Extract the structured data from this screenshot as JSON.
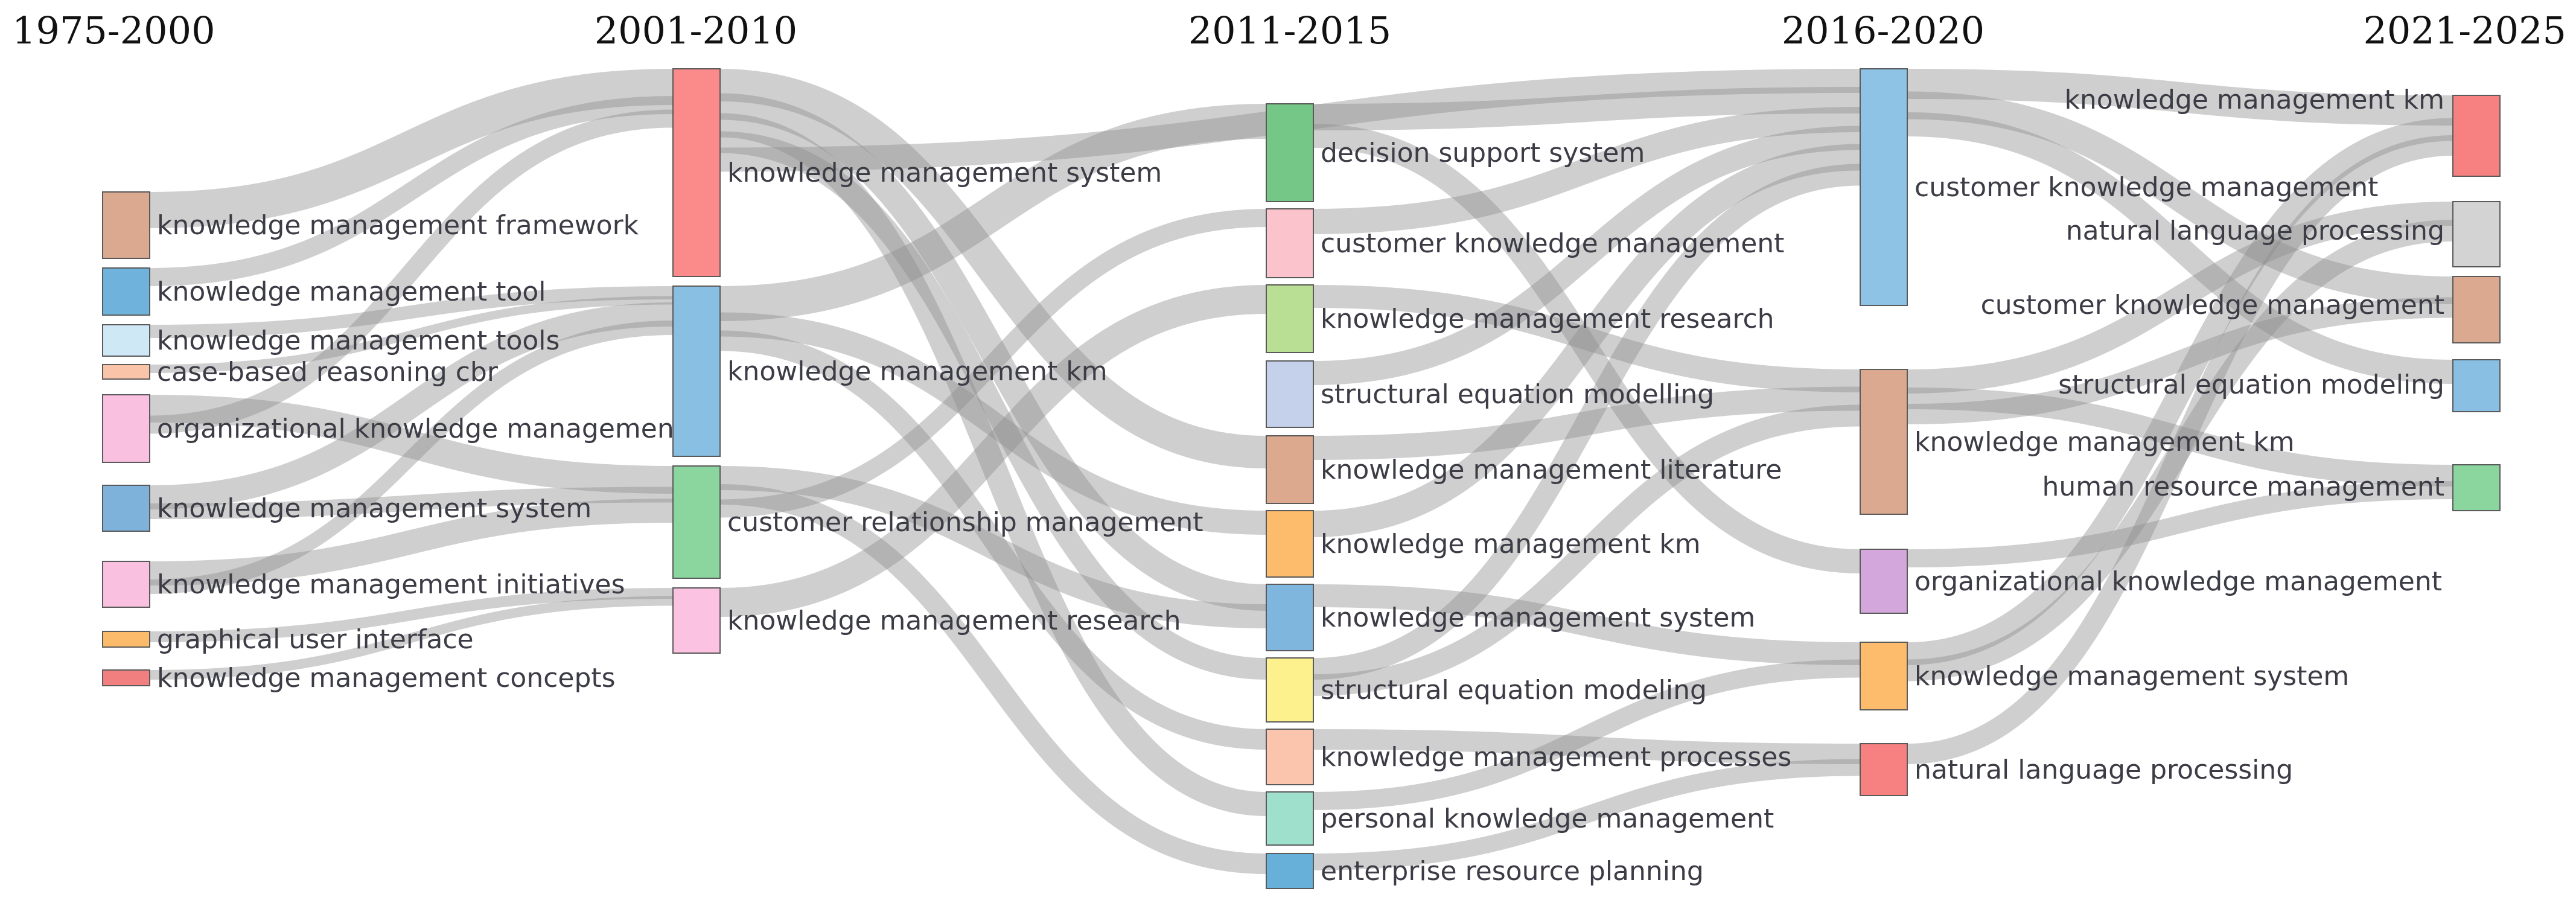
{
  "columns": [
    {
      "title": "1975-2000",
      "nodes": [
        {
          "label": "knowledge management framework",
          "color": "#dba98f"
        },
        {
          "label": "knowledge management tool",
          "color": "#6fb3dc"
        },
        {
          "label": "knowledge management tools",
          "color": "#cfe8f5"
        },
        {
          "label": "case-based reasoning cbr",
          "color": "#f9c4a8"
        },
        {
          "label": "organizational knowledge management",
          "color": "#f9c0e0"
        },
        {
          "label": "knowledge management system",
          "color": "#7fb2da"
        },
        {
          "label": "knowledge management initiatives",
          "color": "#f9c0e0"
        },
        {
          "label": "graphical user interface",
          "color": "#fbbb6a"
        },
        {
          "label": "knowledge management concepts",
          "color": "#f27f7f"
        }
      ]
    },
    {
      "title": "2001-2010",
      "nodes": [
        {
          "label": "knowledge management system",
          "color": "#fb8a8a"
        },
        {
          "label": "knowledge management km",
          "color": "#88bfe2"
        },
        {
          "label": "customer relationship management",
          "color": "#8bd69f"
        },
        {
          "label": "knowledge management research",
          "color": "#fbc2e1"
        }
      ]
    },
    {
      "title": "2011-2015",
      "nodes": [
        {
          "label": "decision support system",
          "color": "#74c786"
        },
        {
          "label": "customer knowledge management",
          "color": "#fbc4cc"
        },
        {
          "label": "knowledge management research",
          "color": "#b9df94"
        },
        {
          "label": "structural equation modelling",
          "color": "#c5d0ea"
        },
        {
          "label": "knowledge management literature",
          "color": "#dca98f"
        },
        {
          "label": "knowledge management km",
          "color": "#fdbc6c"
        },
        {
          "label": "knowledge management system",
          "color": "#7fb6de"
        },
        {
          "label": "structural equation modeling",
          "color": "#fdf18d"
        },
        {
          "label": "knowledge management processes",
          "color": "#fbc4ad"
        },
        {
          "label": "personal knowledge management",
          "color": "#9fe0cc"
        },
        {
          "label": "enterprise resource planning",
          "color": "#66b0da"
        }
      ]
    },
    {
      "title": "2016-2020",
      "nodes": [
        {
          "label": "customer knowledge management",
          "color": "#8ec3e6"
        },
        {
          "label": "knowledge management km",
          "color": "#dba98f"
        },
        {
          "label": "organizational knowledge management",
          "color": "#d3a6dc"
        },
        {
          "label": "knowledge management system",
          "color": "#fdbc6c"
        },
        {
          "label": "natural language processing",
          "color": "#f78181"
        }
      ]
    },
    {
      "title": "2021-2025",
      "nodes": [
        {
          "label": "knowledge management km",
          "color": "#f78181"
        },
        {
          "label": "natural language processing",
          "color": "#d3d3d3"
        },
        {
          "label": "customer knowledge management",
          "color": "#dba98f"
        },
        {
          "label": "structural equation modeling",
          "color": "#88bfe2"
        },
        {
          "label": "human resource management",
          "color": "#8bd69f"
        }
      ]
    }
  ]
}
